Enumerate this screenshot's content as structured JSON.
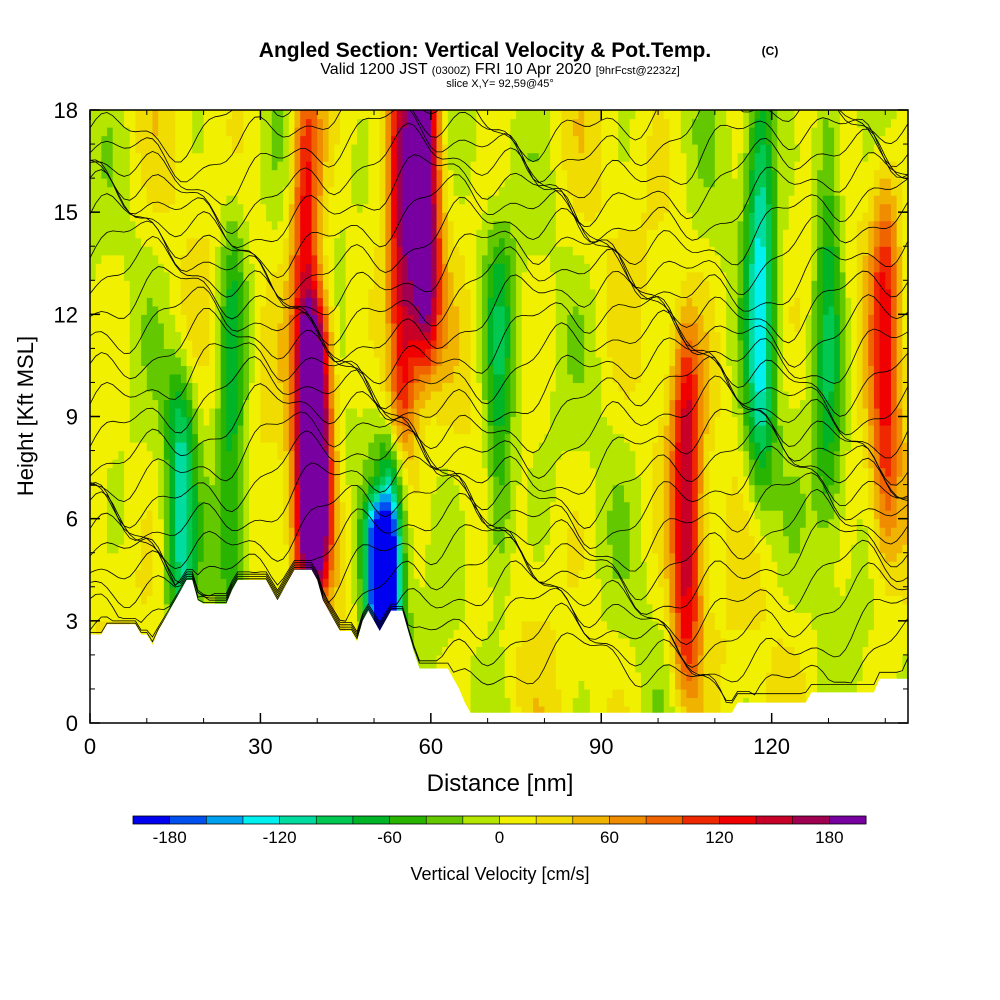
{
  "chart_data": {
    "type": "heatmap",
    "title": "Angled Section: Vertical Velocity & Pot.Temp.",
    "title_unit": "(C)",
    "subtitle": {
      "valid_prefix": "Valid 1200 JST",
      "zulu": "(0300Z)",
      "date": "FRI 10 Apr 2020",
      "forecast": "[9hrFcst@2232z]"
    },
    "slice_label": "slice X,Y= 92,59@45°",
    "xlabel": "Distance [nm]",
    "ylabel": "Height [Kft MSL]",
    "xlim": [
      0,
      144
    ],
    "ylim": [
      0,
      18
    ],
    "xticks": [
      0,
      30,
      60,
      90,
      120
    ],
    "yticks": [
      0,
      3,
      6,
      9,
      12,
      15,
      18
    ],
    "colorbar": {
      "label": "Vertical Velocity [cm/s]",
      "min": -200,
      "max": 200,
      "step": 20,
      "tick_values": [
        -180,
        -120,
        -60,
        0,
        60,
        120,
        180
      ],
      "tick_labels": [
        "-180",
        "-120",
        "-60",
        "0",
        "60",
        "120",
        "180"
      ],
      "colors": [
        "#0000f0",
        "#0050f0",
        "#00a0f0",
        "#00f0f0",
        "#00dca0",
        "#00c850",
        "#00b428",
        "#28b400",
        "#64c800",
        "#b4e600",
        "#f0f000",
        "#f0dc00",
        "#f0b400",
        "#f08c00",
        "#f06400",
        "#f02800",
        "#f00000",
        "#c80028",
        "#a00050",
        "#7800a0"
      ]
    },
    "terrain_kft": [
      [
        0,
        2.6
      ],
      [
        2,
        2.6
      ],
      [
        3,
        2.9
      ],
      [
        8,
        2.9
      ],
      [
        9,
        2.6
      ],
      [
        10,
        2.6
      ],
      [
        11,
        2.3
      ],
      [
        12,
        2.7
      ],
      [
        13,
        3.0
      ],
      [
        14,
        3.3
      ],
      [
        15,
        3.6
      ],
      [
        16,
        3.9
      ],
      [
        17,
        4.2
      ],
      [
        18,
        4.2
      ],
      [
        19,
        3.6
      ],
      [
        20,
        3.5
      ],
      [
        23,
        3.5
      ],
      [
        24,
        3.5
      ],
      [
        25,
        3.9
      ],
      [
        26,
        4.2
      ],
      [
        31,
        4.2
      ],
      [
        32,
        3.9
      ],
      [
        33,
        3.6
      ],
      [
        34,
        3.9
      ],
      [
        35,
        4.2
      ],
      [
        36,
        4.5
      ],
      [
        39,
        4.5
      ],
      [
        40,
        4.2
      ],
      [
        41,
        3.6
      ],
      [
        42,
        3.3
      ],
      [
        43,
        3.0
      ],
      [
        44,
        2.7
      ],
      [
        46,
        2.7
      ],
      [
        47,
        2.4
      ],
      [
        48,
        3.0
      ],
      [
        49,
        3.3
      ],
      [
        50,
        3.0
      ],
      [
        51,
        2.7
      ],
      [
        52,
        3.0
      ],
      [
        53,
        3.3
      ],
      [
        55,
        3.3
      ],
      [
        56,
        2.7
      ],
      [
        57,
        2.1
      ],
      [
        58,
        1.6
      ],
      [
        63,
        1.6
      ],
      [
        64,
        1.3
      ],
      [
        65,
        1.0
      ],
      [
        66,
        0.6
      ],
      [
        67,
        0.3
      ],
      [
        113,
        0.3
      ],
      [
        114,
        0.6
      ],
      [
        126,
        0.6
      ],
      [
        127,
        0.9
      ],
      [
        138,
        0.9
      ],
      [
        139,
        1.3
      ],
      [
        144,
        1.3
      ]
    ],
    "updraft_cores": [
      {
        "x": 38,
        "from_kft": 4.5,
        "to_kft": 18,
        "peak_cms": 140
      },
      {
        "x": 40,
        "from_kft": 5.5,
        "to_kft": 11,
        "peak_cms": 200
      },
      {
        "x": 55,
        "from_kft": 9,
        "to_kft": 18,
        "peak_cms": 140
      },
      {
        "x": 59,
        "from_kft": 12,
        "to_kft": 18,
        "peak_cms": 200
      },
      {
        "x": 105,
        "from_kft": 2,
        "to_kft": 10,
        "peak_cms": 140
      },
      {
        "x": 140,
        "from_kft": 6,
        "to_kft": 15,
        "peak_cms": 100
      }
    ],
    "downdraft_cores": [
      {
        "x": 51,
        "from_kft": 3,
        "to_kft": 5,
        "peak_cms": -200
      },
      {
        "x": 53,
        "from_kft": 3,
        "to_kft": 7,
        "peak_cms": -120
      },
      {
        "x": 118,
        "from_kft": 8,
        "to_kft": 18,
        "peak_cms": -120
      },
      {
        "x": 130,
        "from_kft": 7,
        "to_kft": 18,
        "peak_cms": -80
      },
      {
        "x": 16,
        "from_kft": 4,
        "to_kft": 9,
        "peak_cms": -100
      },
      {
        "x": 25,
        "from_kft": 4,
        "to_kft": 14,
        "peak_cms": -80
      },
      {
        "x": 72,
        "from_kft": 5,
        "to_kft": 13,
        "peak_cms": -80
      }
    ],
    "isentrope_count": 26
  }
}
